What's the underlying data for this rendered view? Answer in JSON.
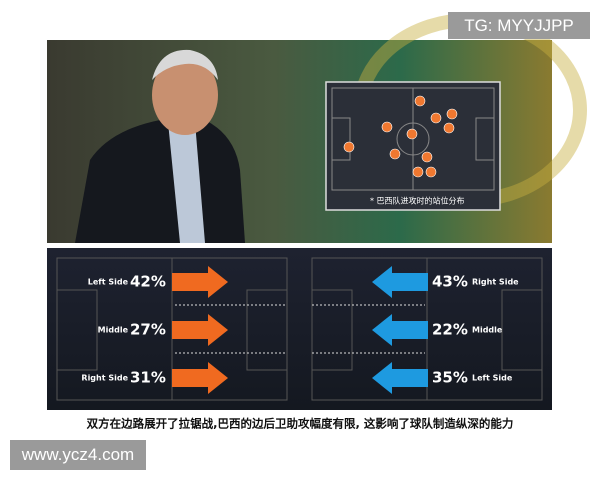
{
  "watermark_top": "TG: MYYJJPP",
  "inset_caption": "* 巴西队进攻时的站位分布",
  "left_team": [
    {
      "side": "Left Side",
      "percent": "42%"
    },
    {
      "side": "Middle",
      "percent": "27%"
    },
    {
      "side": "Right Side",
      "percent": "31%"
    }
  ],
  "right_team": [
    {
      "side": "Right Side",
      "percent": "43%"
    },
    {
      "side": "Middle",
      "percent": "22%"
    },
    {
      "side": "Left Side",
      "percent": "35%"
    }
  ],
  "caption": "双方在边路展开了拉锯战,巴西的边后卫助攻幅度有限, 这影响了球队制造纵深的能力",
  "watermark_bottom": "www.ycz4.com"
}
